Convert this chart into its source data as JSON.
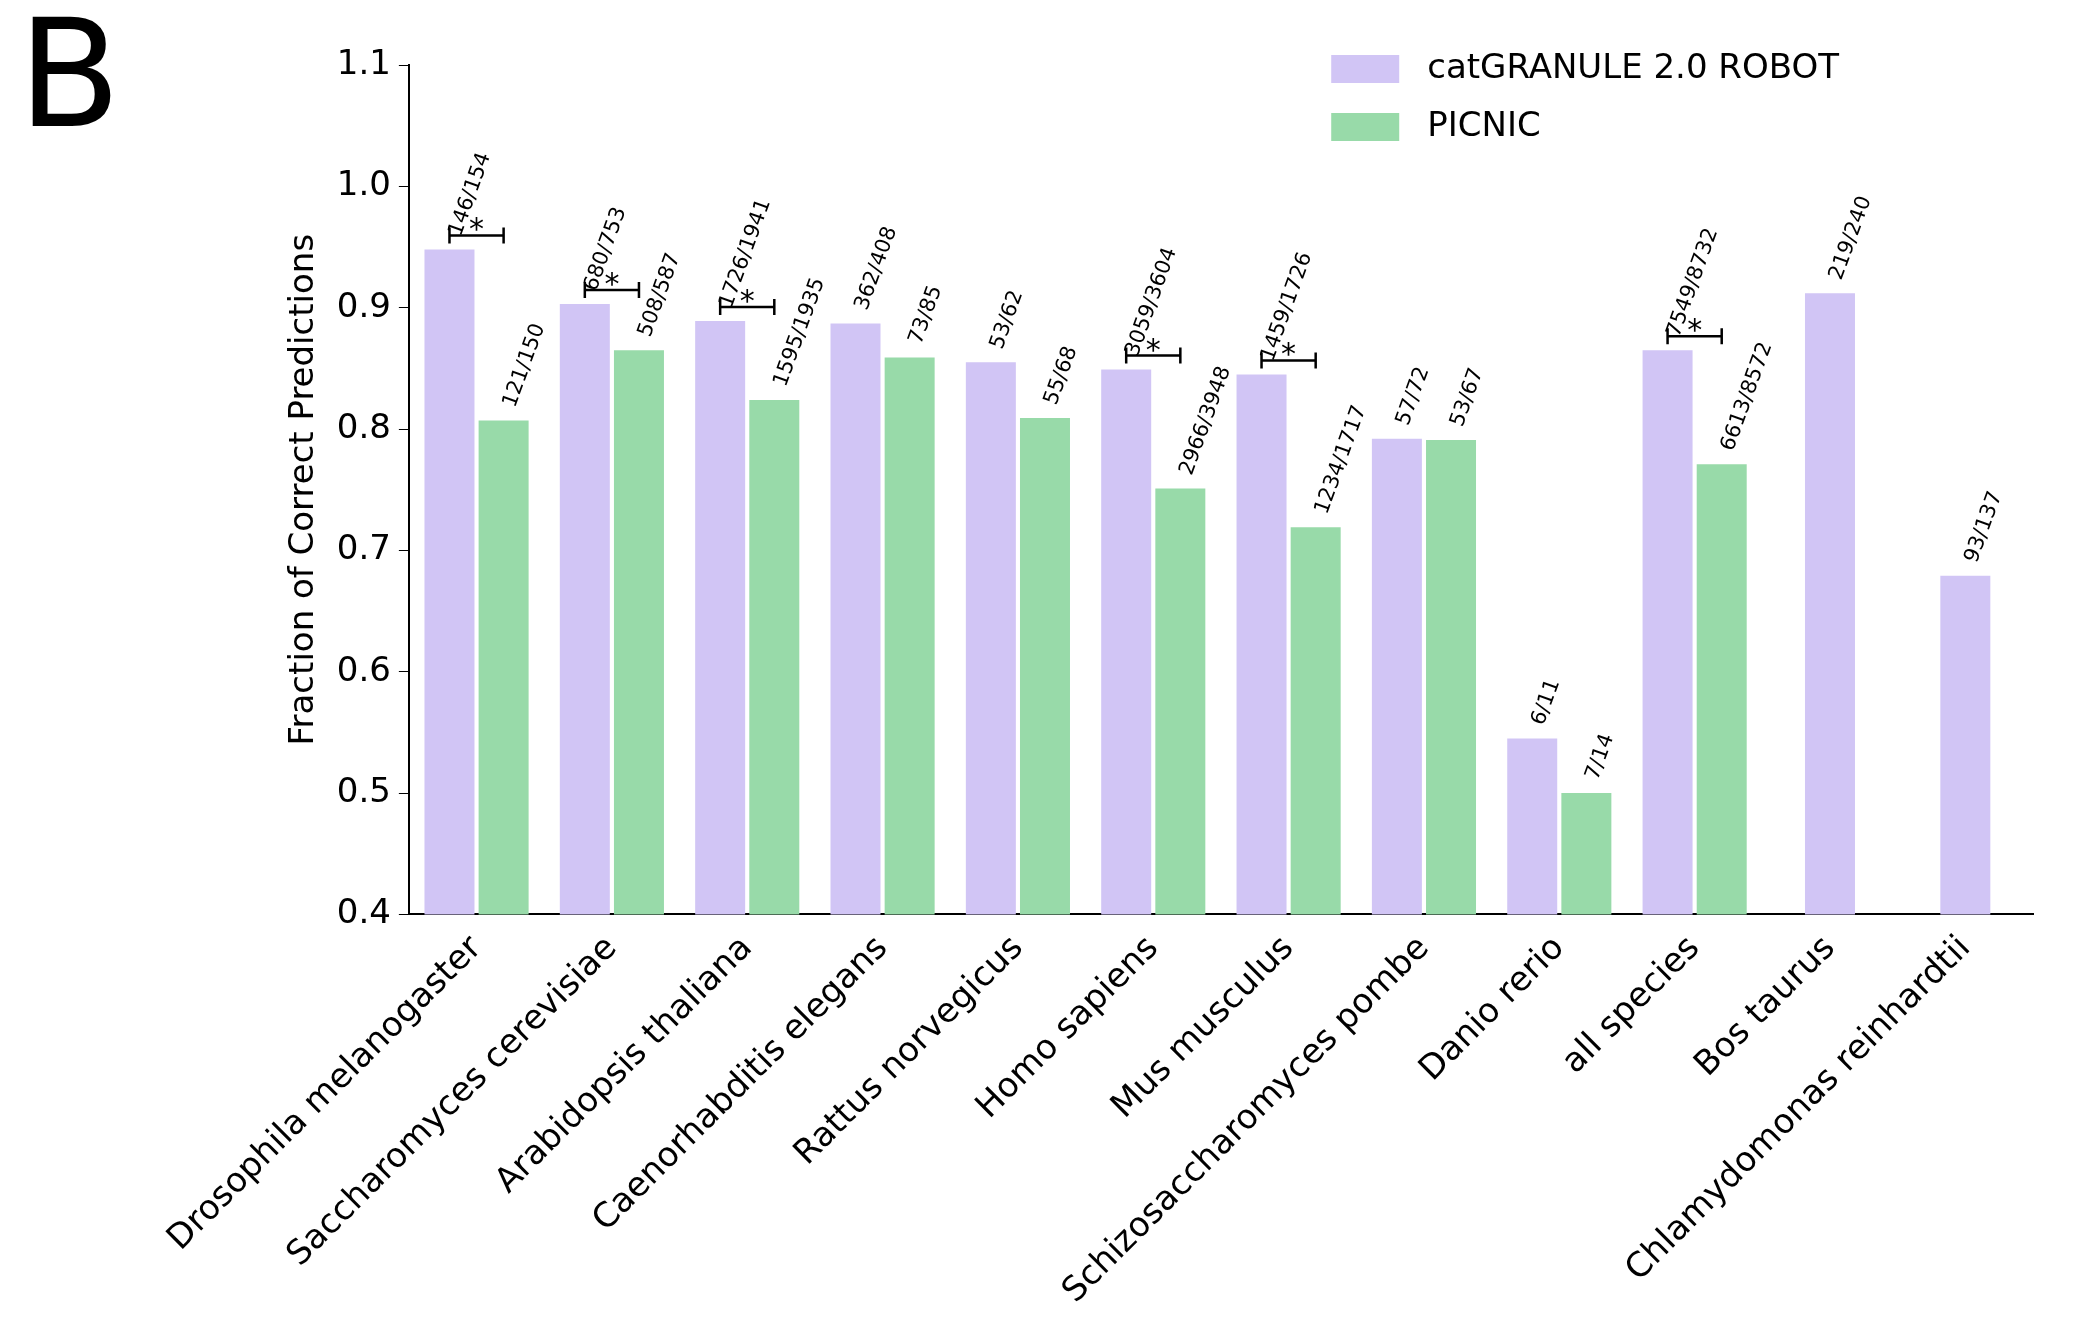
{
  "chart_data": {
    "type": "bar",
    "ylabel": "Fraction of Correct Predictions",
    "categories": [
      "Drosophila melanogaster",
      "Saccharomyces cerevisiae",
      "Arabidopsis thaliana",
      "Caenorhabditis elegans",
      "Rattus norvegicus",
      "Homo sapiens",
      "Mus musculus",
      "Schizosaccharomyces pombe",
      "Danio rerio",
      "all species",
      "Bos taurus",
      "Chlamydomonas reinhardtii"
    ],
    "series": [
      {
        "name": "catGRANULE 2.0 ROBOT",
        "color": "#d1c5f5",
        "values": [
          0.948,
          0.903,
          0.889,
          0.887,
          0.855,
          0.849,
          0.845,
          0.792,
          0.545,
          0.865,
          0.912,
          0.679
        ],
        "value_labels": [
          "146/154",
          "680/753",
          "1726/1941",
          "362/408",
          "53/62",
          "3059/3604",
          "1459/1726",
          "57/72",
          "6/11",
          "7549/8732",
          "219/240",
          "93/137"
        ]
      },
      {
        "name": "PICNIC",
        "color": "#98daa9",
        "values": [
          0.807,
          0.865,
          0.824,
          0.859,
          0.809,
          0.751,
          0.719,
          0.791,
          0.5,
          0.771,
          null,
          null
        ],
        "value_labels": [
          "121/150",
          "508/587",
          "1595/1935",
          "73/85",
          "55/68",
          "2966/3948",
          "1234/1717",
          "53/67",
          "7/14",
          "6613/8572",
          null,
          null
        ]
      }
    ],
    "ylim": [
      0.4,
      1.1
    ],
    "yticks": [
      0.4,
      0.5,
      0.6,
      0.7,
      0.8,
      0.9,
      {
        "value": 1.0,
        "label": "1.0"
      },
      1.1
    ],
    "grid": false,
    "legend": "top right",
    "annotations": [
      "B",
      "*",
      "*",
      "*",
      "*",
      "*",
      "*"
    ]
  }
}
